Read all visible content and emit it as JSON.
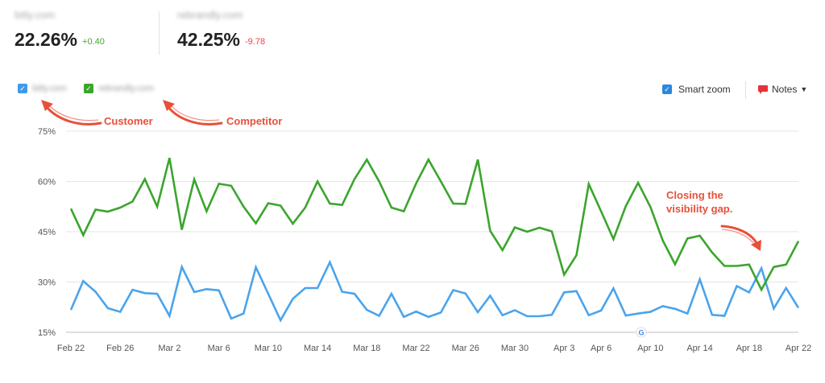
{
  "header": {
    "metrics": [
      {
        "domain": "bitly.com",
        "value": "22.26%",
        "delta": "+0.40",
        "delta_color": "#44a72f"
      },
      {
        "domain": "rebrandly.com",
        "value": "42.25%",
        "delta": "-9.78",
        "delta_color": "#e8444a"
      }
    ]
  },
  "legend": {
    "items": [
      {
        "label": "bitly.com",
        "color": "#3d9be9",
        "checked": true
      },
      {
        "label": "rebrandly.com",
        "color": "#3ba52d",
        "checked": true
      }
    ],
    "smart_zoom_label": "Smart zoom",
    "notes_label": "Notes"
  },
  "annotations": {
    "customer": "Customer",
    "competitor": "Competitor",
    "gap_line1": "Closing the",
    "gap_line2": "visibility gap."
  },
  "chart_data": {
    "type": "line",
    "ylim": [
      15,
      75
    ],
    "yticks": [
      "15%",
      "30%",
      "45%",
      "60%",
      "75%"
    ],
    "ytick_values": [
      15,
      30,
      45,
      60,
      75
    ],
    "xtick_labels": [
      "Feb 22",
      "Feb 26",
      "Mar 2",
      "Mar 6",
      "Mar 10",
      "Mar 14",
      "Mar 18",
      "Mar 22",
      "Mar 26",
      "Mar 30",
      "Apr 3",
      "Apr 6",
      "Apr 10",
      "Apr 14",
      "Apr 18",
      "Apr 22"
    ],
    "xtick_indices": [
      0,
      4,
      8,
      12,
      16,
      20,
      24,
      28,
      32,
      36,
      40,
      43,
      47,
      51,
      55,
      59
    ],
    "x": [
      "Feb 22",
      "Feb 23",
      "Feb 24",
      "Feb 25",
      "Feb 26",
      "Feb 27",
      "Feb 28",
      "Mar 1",
      "Mar 2",
      "Mar 3",
      "Mar 4",
      "Mar 5",
      "Mar 6",
      "Mar 7",
      "Mar 8",
      "Mar 9",
      "Mar 10",
      "Mar 11",
      "Mar 12",
      "Mar 13",
      "Mar 14",
      "Mar 15",
      "Mar 16",
      "Mar 17",
      "Mar 18",
      "Mar 19",
      "Mar 20",
      "Mar 21",
      "Mar 22",
      "Mar 23",
      "Mar 24",
      "Mar 25",
      "Mar 26",
      "Mar 27",
      "Mar 28",
      "Mar 29",
      "Mar 30",
      "Mar 31",
      "Apr 1",
      "Apr 2",
      "Apr 3",
      "Apr 4",
      "Apr 5",
      "Apr 6",
      "Apr 7",
      "Apr 8",
      "Apr 9",
      "Apr 10",
      "Apr 11",
      "Apr 12",
      "Apr 13",
      "Apr 14",
      "Apr 15",
      "Apr 16",
      "Apr 17",
      "Apr 18",
      "Apr 19",
      "Apr 20",
      "Apr 21",
      "Apr 22"
    ],
    "series": [
      {
        "name": "bitly.com",
        "color": "#4aa4ec",
        "values": [
          21.7,
          30.3,
          27.1,
          22.2,
          21.1,
          27.7,
          26.7,
          26.5,
          19.9,
          34.5,
          27.0,
          27.9,
          27.5,
          19.1,
          20.6,
          34.4,
          26.5,
          18.6,
          25.0,
          28.2,
          28.2,
          35.9,
          27.1,
          26.5,
          21.7,
          19.9,
          26.5,
          19.6,
          21.2,
          19.6,
          20.9,
          27.6,
          26.6,
          21.0,
          25.9,
          20.1,
          21.6,
          19.8,
          19.8,
          20.2,
          26.9,
          27.3,
          20.1,
          21.5,
          28.1,
          20.0,
          20.6,
          21.1,
          22.8,
          22.0,
          20.6,
          30.8,
          20.2,
          19.9,
          28.8,
          26.9,
          34.1,
          22.1,
          28.2,
          22.3
        ]
      },
      {
        "name": "rebrandly.com",
        "color": "#3ba52d",
        "values": [
          51.9,
          44.0,
          51.6,
          51.0,
          52.2,
          54.0,
          60.7,
          52.5,
          67.0,
          45.6,
          60.6,
          51.1,
          59.3,
          58.7,
          52.5,
          47.5,
          53.5,
          52.8,
          47.4,
          52.2,
          60.0,
          53.4,
          53.0,
          60.7,
          66.5,
          60.0,
          52.2,
          51.1,
          59.4,
          66.5,
          60.0,
          53.4,
          53.3,
          66.5,
          45.3,
          39.5,
          46.3,
          45.0,
          46.2,
          45.1,
          32.2,
          38.0,
          59.2,
          51.1,
          42.8,
          52.6,
          59.6,
          52.4,
          42.4,
          35.3,
          43.0,
          43.8,
          38.8,
          34.8,
          34.8,
          35.2,
          27.7,
          34.5,
          35.2,
          42.2
        ]
      }
    ]
  }
}
